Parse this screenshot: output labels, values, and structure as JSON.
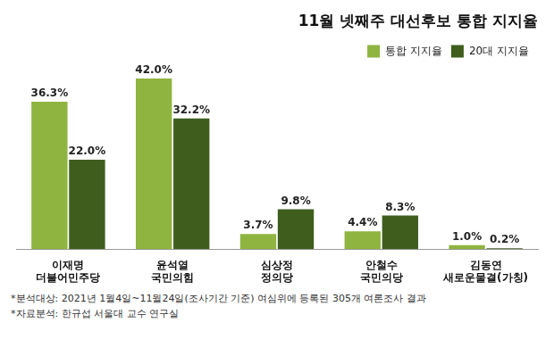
{
  "chart_data": {
    "type": "bar",
    "title": "11월 넷째주 대선후보 통합 지지율",
    "categories": [
      [
        "이재명",
        "더불어민주당"
      ],
      [
        "윤석열",
        "국민의힘"
      ],
      [
        "심상정",
        "정의당"
      ],
      [
        "안철수",
        "국민의당"
      ],
      [
        "김동연",
        "새로운물결(가칭)"
      ]
    ],
    "series": [
      {
        "name": "통합 지지율",
        "color": "#8fb43f",
        "values": [
          36.3,
          42.0,
          3.7,
          4.4,
          1.0
        ],
        "value_labels": [
          "36.3%",
          "42.0%",
          "3.7%",
          "4.4%",
          "1.0%"
        ]
      },
      {
        "name": "20대 지지율",
        "color": "#3f5e1e",
        "values": [
          22.0,
          32.2,
          9.8,
          8.3,
          0.2
        ],
        "value_labels": [
          "22.0%",
          "32.2%",
          "9.8%",
          "8.3%",
          "0.2%"
        ]
      }
    ],
    "ylim": [
      0,
      45
    ],
    "grid": false,
    "legend": "top-right",
    "data_labels": true,
    "tick_labels": "x"
  },
  "notes": [
    "*분석대상: 2021년 1월4일~11월24일(조사기간 기준) 여심위에 등록된 305개 여론조사 결과",
    "*자료분석: 한규섭 서울대 교수 연구실"
  ]
}
